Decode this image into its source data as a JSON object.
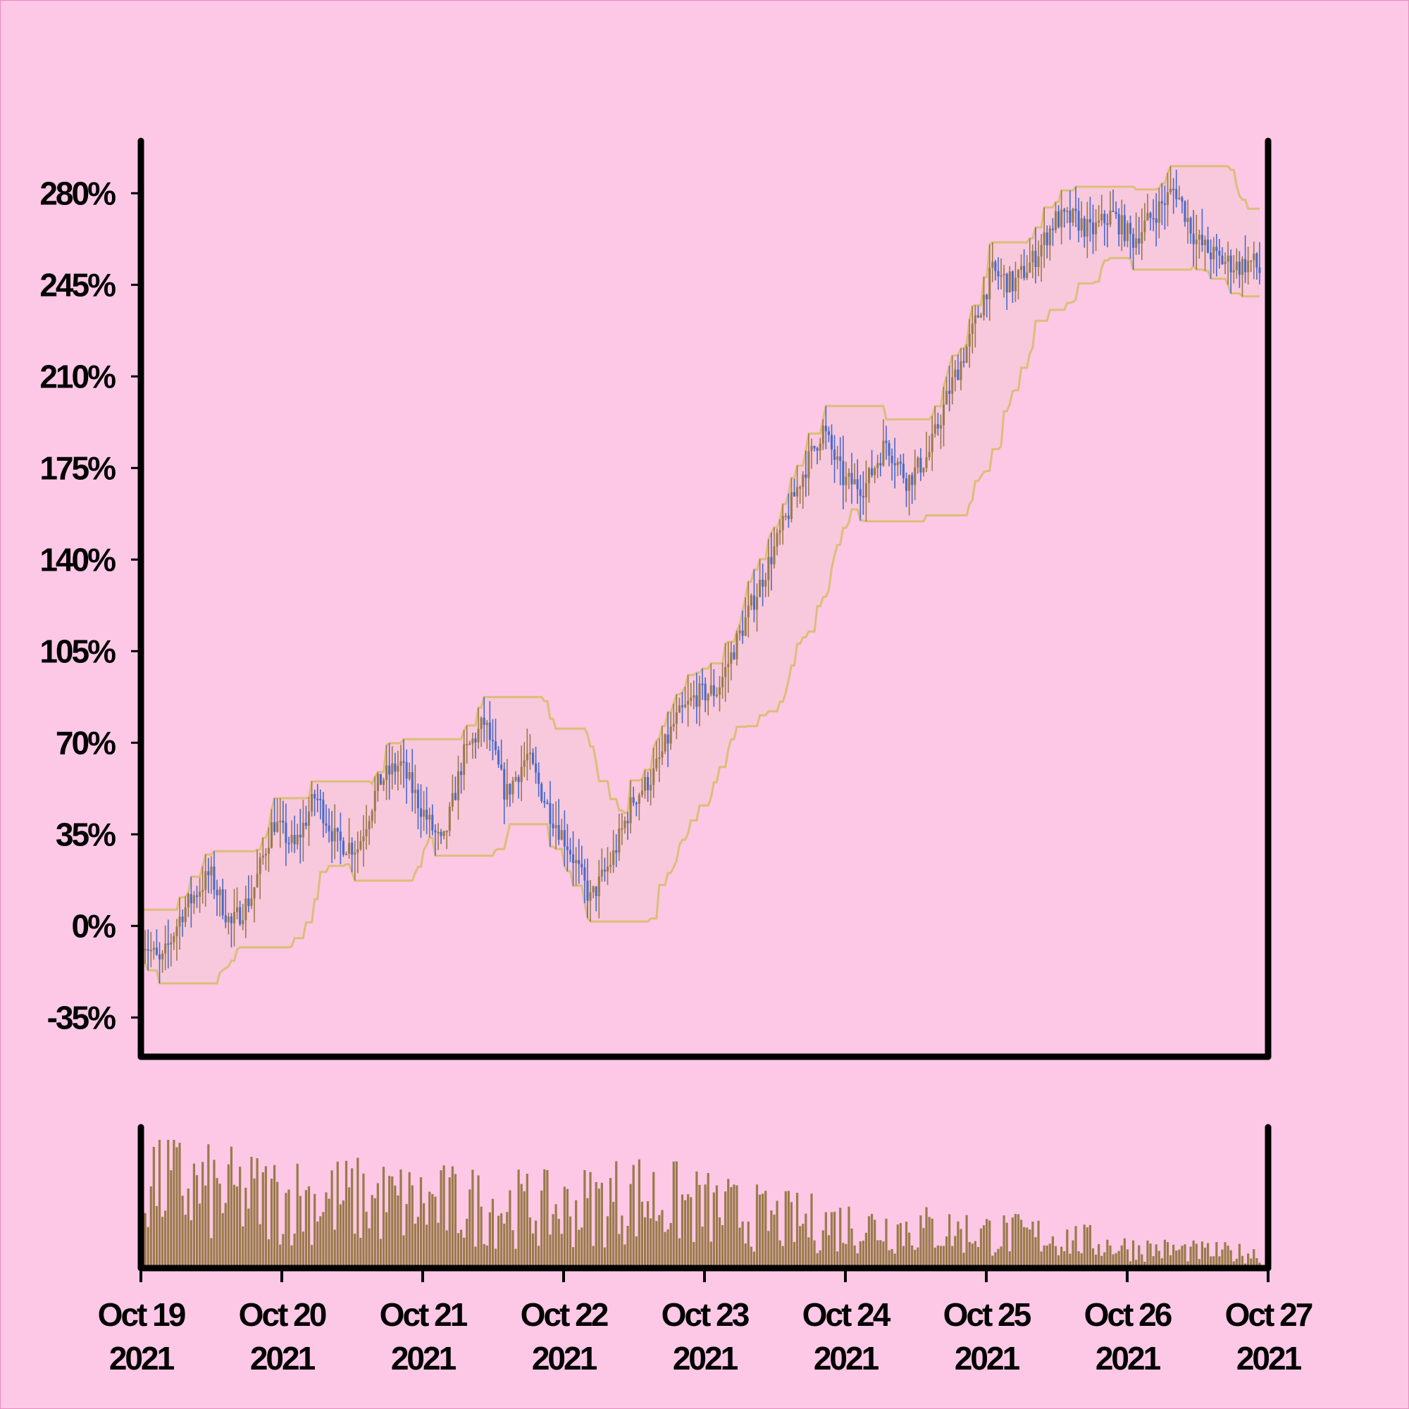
{
  "chart_data": {
    "type": "candlestick",
    "title": "",
    "background": "#fcc8e6",
    "colors": {
      "up": "#9a7a4a",
      "down": "#4a6ac8",
      "band": "#dcbe78",
      "band_fill": "#f7c8dc",
      "volume": "#9a7a4a",
      "axis": "#000000"
    },
    "y_axis": {
      "format": "percent",
      "range": [
        -50,
        300
      ],
      "ticks": [
        -35,
        0,
        35,
        70,
        105,
        140,
        175,
        210,
        245,
        280
      ],
      "tick_labels": [
        "-35%",
        "0%",
        "35%",
        "70%",
        "105%",
        "140%",
        "175%",
        "210%",
        "245%",
        "280%"
      ]
    },
    "x_axis": {
      "range": [
        "2021-10-19",
        "2021-10-27"
      ],
      "tick_labels": [
        [
          "Oct 19",
          "2021"
        ],
        [
          "Oct 20",
          "2021"
        ],
        [
          "Oct 21",
          "2021"
        ],
        [
          "Oct 22",
          "2021"
        ],
        [
          "Oct 23",
          "2021"
        ],
        [
          "Oct 24",
          "2021"
        ],
        [
          "Oct 25",
          "2021"
        ],
        [
          "Oct 26",
          "2021"
        ],
        [
          "Oct 27",
          "2021"
        ]
      ]
    },
    "price_path": {
      "t_days": [
        0,
        0.15,
        0.3,
        0.5,
        0.65,
        0.8,
        0.95,
        1.1,
        1.25,
        1.4,
        1.55,
        1.7,
        1.85,
        2.0,
        2.15,
        2.3,
        2.45,
        2.6,
        2.75,
        2.9,
        3.05,
        3.2,
        3.35,
        3.5,
        3.65,
        3.8,
        3.95,
        4.1,
        4.25,
        4.4,
        4.55,
        4.7,
        4.85,
        5.0,
        5.15,
        5.3,
        5.45,
        5.6,
        5.75,
        5.9,
        6.05,
        6.2,
        6.35,
        6.5,
        6.65,
        6.75,
        6.9,
        7.05,
        7.2,
        7.35,
        7.5,
        7.65,
        7.8,
        7.9,
        7.95
      ],
      "percent": [
        -3,
        -15,
        5,
        20,
        0,
        12,
        40,
        30,
        50,
        32,
        30,
        55,
        62,
        45,
        30,
        65,
        78,
        50,
        65,
        45,
        30,
        10,
        25,
        48,
        58,
        78,
        88,
        90,
        110,
        130,
        150,
        172,
        190,
        170,
        168,
        185,
        170,
        180,
        205,
        225,
        250,
        245,
        255,
        270,
        270,
        265,
        272,
        262,
        272,
        282,
        262,
        255,
        252,
        254,
        250
      ]
    },
    "volume": {
      "t_days": [
        0,
        0.5,
        1.0,
        1.5,
        2.0,
        2.5,
        3.0,
        3.5,
        4.0,
        4.5,
        5.0,
        5.5,
        6.0,
        6.5,
        7.0,
        7.5,
        7.95
      ],
      "relative": [
        0.9,
        0.72,
        0.68,
        0.66,
        0.62,
        0.6,
        0.56,
        0.7,
        0.58,
        0.46,
        0.42,
        0.38,
        0.34,
        0.3,
        0.2,
        0.16,
        0.14
      ]
    },
    "bands": {
      "type": "price channel",
      "lookback_candles": 20
    }
  }
}
